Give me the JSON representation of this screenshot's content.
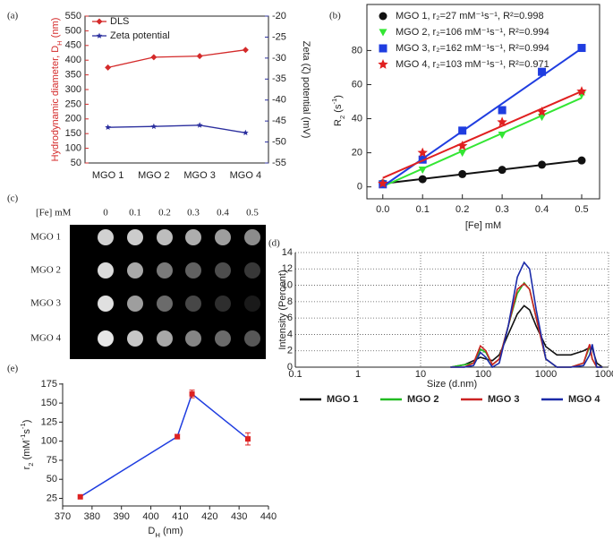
{
  "chart_data": [
    {
      "type": "line",
      "panel": "(a)",
      "categories": [
        "MGO 1",
        "MGO 2",
        "MGO 3",
        "MGO 4"
      ],
      "ylabel": [
        {
          "text": "Hydrodynamic diameter, D"
        },
        {
          "text": "H",
          "sub": true
        },
        {
          "text": " (nm)"
        }
      ],
      "y2label": "Zeta (ζ) potential (mV)",
      "ylim": [
        50,
        550
      ],
      "yticks": [
        50,
        100,
        150,
        200,
        250,
        300,
        350,
        400,
        450,
        500,
        550
      ],
      "y2lim": [
        -55,
        -20
      ],
      "y2ticks": [
        -55,
        -50,
        -45,
        -40,
        -35,
        -30,
        -25,
        -20
      ],
      "series": [
        {
          "name": "DLS",
          "color": "#d42a2a",
          "marker": "diamond",
          "values": [
            375,
            410,
            414,
            435
          ]
        },
        {
          "name": "Zeta potential",
          "color": "#2b2f9e",
          "marker": "star",
          "axis": "y2",
          "values": [
            -46.5,
            -46.3,
            -46.0,
            -47.8
          ]
        }
      ]
    },
    {
      "type": "scatter",
      "panel": "(b)",
      "xlabel": "[Fe] mM",
      "ylabel": [
        {
          "text": "R"
        },
        {
          "text": "2",
          "sub": true
        },
        {
          "text": " (s"
        },
        {
          "text": "-1",
          "sup": true
        },
        {
          "text": ")"
        }
      ],
      "x": [
        0,
        0.1,
        0.2,
        0.3,
        0.4,
        0.5
      ],
      "xlim": [
        -0.04,
        0.545
      ],
      "xticks": [
        {
          "value": 0,
          "label": "0.0"
        },
        0.1,
        0.2,
        0.3,
        0.4,
        0.5
      ],
      "ylim": [
        -7,
        107
      ],
      "yticks": [
        0,
        20,
        40,
        60,
        80
      ],
      "series": [
        {
          "name": "MGO 1, r₂=27 mM⁻¹s⁻¹, R²=0.998",
          "color": "#111111",
          "marker": "circle",
          "values": [
            2,
            4.5,
            7.5,
            10,
            13,
            15.5
          ]
        },
        {
          "name": "MGO 2, r₂=106 mM⁻¹s⁻¹, R²=0.994",
          "color": "#33e633",
          "marker": "triangle-down",
          "values": [
            2,
            10,
            20,
            30.5,
            41,
            54
          ]
        },
        {
          "name": "MGO 3, r₂=162 mM⁻¹s⁻¹, R²=0.994",
          "color": "#1f3de0",
          "marker": "square",
          "values": [
            1.5,
            16,
            33,
            45,
            67.5,
            81.5
          ]
        },
        {
          "name": "MGO 4, r₂=103 mM⁻¹s⁻¹, R²=0.971",
          "color": "#e02020",
          "marker": "star",
          "values": [
            2,
            20,
            24,
            38,
            44,
            56
          ]
        }
      ]
    },
    {
      "type": "image",
      "panel": "(c)",
      "xlabel": "[Fe] mM",
      "columns": [
        "0",
        "0.1",
        "0.2",
        "0.3",
        "0.4",
        "0.5"
      ],
      "rows": [
        "MGO 1",
        "MGO 2",
        "MGO 3",
        "MGO 4"
      ]
    },
    {
      "type": "line",
      "panel": "(d)",
      "xlabel": "Size (d.nm)",
      "ylabel": "Intensity (Percent)",
      "log_x": true,
      "grid": true,
      "x": [
        30,
        50,
        70,
        90,
        110,
        140,
        180,
        250,
        350,
        450,
        550,
        700,
        1000,
        1500,
        2500,
        4000,
        5000,
        5500,
        6500,
        8000
      ],
      "xlim": [
        0.1,
        10000
      ],
      "xticks": [
        0.1,
        1,
        10,
        100,
        1000,
        10000
      ],
      "ylim": [
        0,
        14
      ],
      "yticks": [
        0,
        2,
        4,
        6,
        8,
        10,
        12,
        14
      ],
      "series": [
        {
          "name": "MGO 1",
          "color": "#111111",
          "values": [
            0,
            0.3,
            0.8,
            1.2,
            1.0,
            0.8,
            1.5,
            4,
            6.5,
            7.5,
            7,
            5,
            2.5,
            1.5,
            1.5,
            2,
            2.4,
            2.3,
            0.5,
            0
          ]
        },
        {
          "name": "MGO 2",
          "color": "#22bb22",
          "values": [
            0,
            0.3,
            0.5,
            2.2,
            1.8,
            0.3,
            1,
            5,
            9,
            10.3,
            9.5,
            6,
            1,
            0,
            0,
            0.5,
            2.5,
            1.0,
            0,
            0
          ]
        },
        {
          "name": "MGO 3",
          "color": "#cc2222",
          "values": [
            0,
            0,
            0.5,
            2.6,
            2.0,
            0.3,
            1,
            5,
            9.5,
            10.2,
            9.5,
            6,
            1,
            0,
            0,
            0.5,
            2.8,
            1,
            0,
            0
          ]
        },
        {
          "name": "MGO 4",
          "color": "#1a2aa8",
          "values": [
            0,
            0,
            0.2,
            1.8,
            1.2,
            0,
            0.5,
            5,
            11,
            12.8,
            12,
            7,
            1,
            0,
            0,
            0.2,
            1.5,
            2.8,
            0,
            0
          ]
        }
      ]
    },
    {
      "type": "errorline",
      "panel": "(e)",
      "xlabel": [
        {
          "text": "D"
        },
        {
          "text": "H",
          "sub": true
        },
        {
          "text": " (nm)"
        }
      ],
      "ylabel": [
        {
          "text": "r"
        },
        {
          "text": "2",
          "sub": true
        },
        {
          "text": " (mM"
        },
        {
          "text": "-1",
          "sup": true
        },
        {
          "text": "s"
        },
        {
          "text": "-1",
          "sup": true
        },
        {
          "text": ")"
        }
      ],
      "x": [
        376,
        409,
        414,
        433
      ],
      "values": [
        27,
        106,
        162,
        103
      ],
      "errors": [
        null,
        3,
        5,
        8
      ],
      "color": "#1f3de0",
      "marker_color": "#dd2222",
      "xlim": [
        370,
        440
      ],
      "xticks": [
        370,
        380,
        390,
        400,
        410,
        420,
        430,
        440
      ],
      "ylim": [
        15,
        176
      ],
      "yticks": [
        25,
        50,
        75,
        100,
        125,
        150,
        175
      ]
    }
  ]
}
